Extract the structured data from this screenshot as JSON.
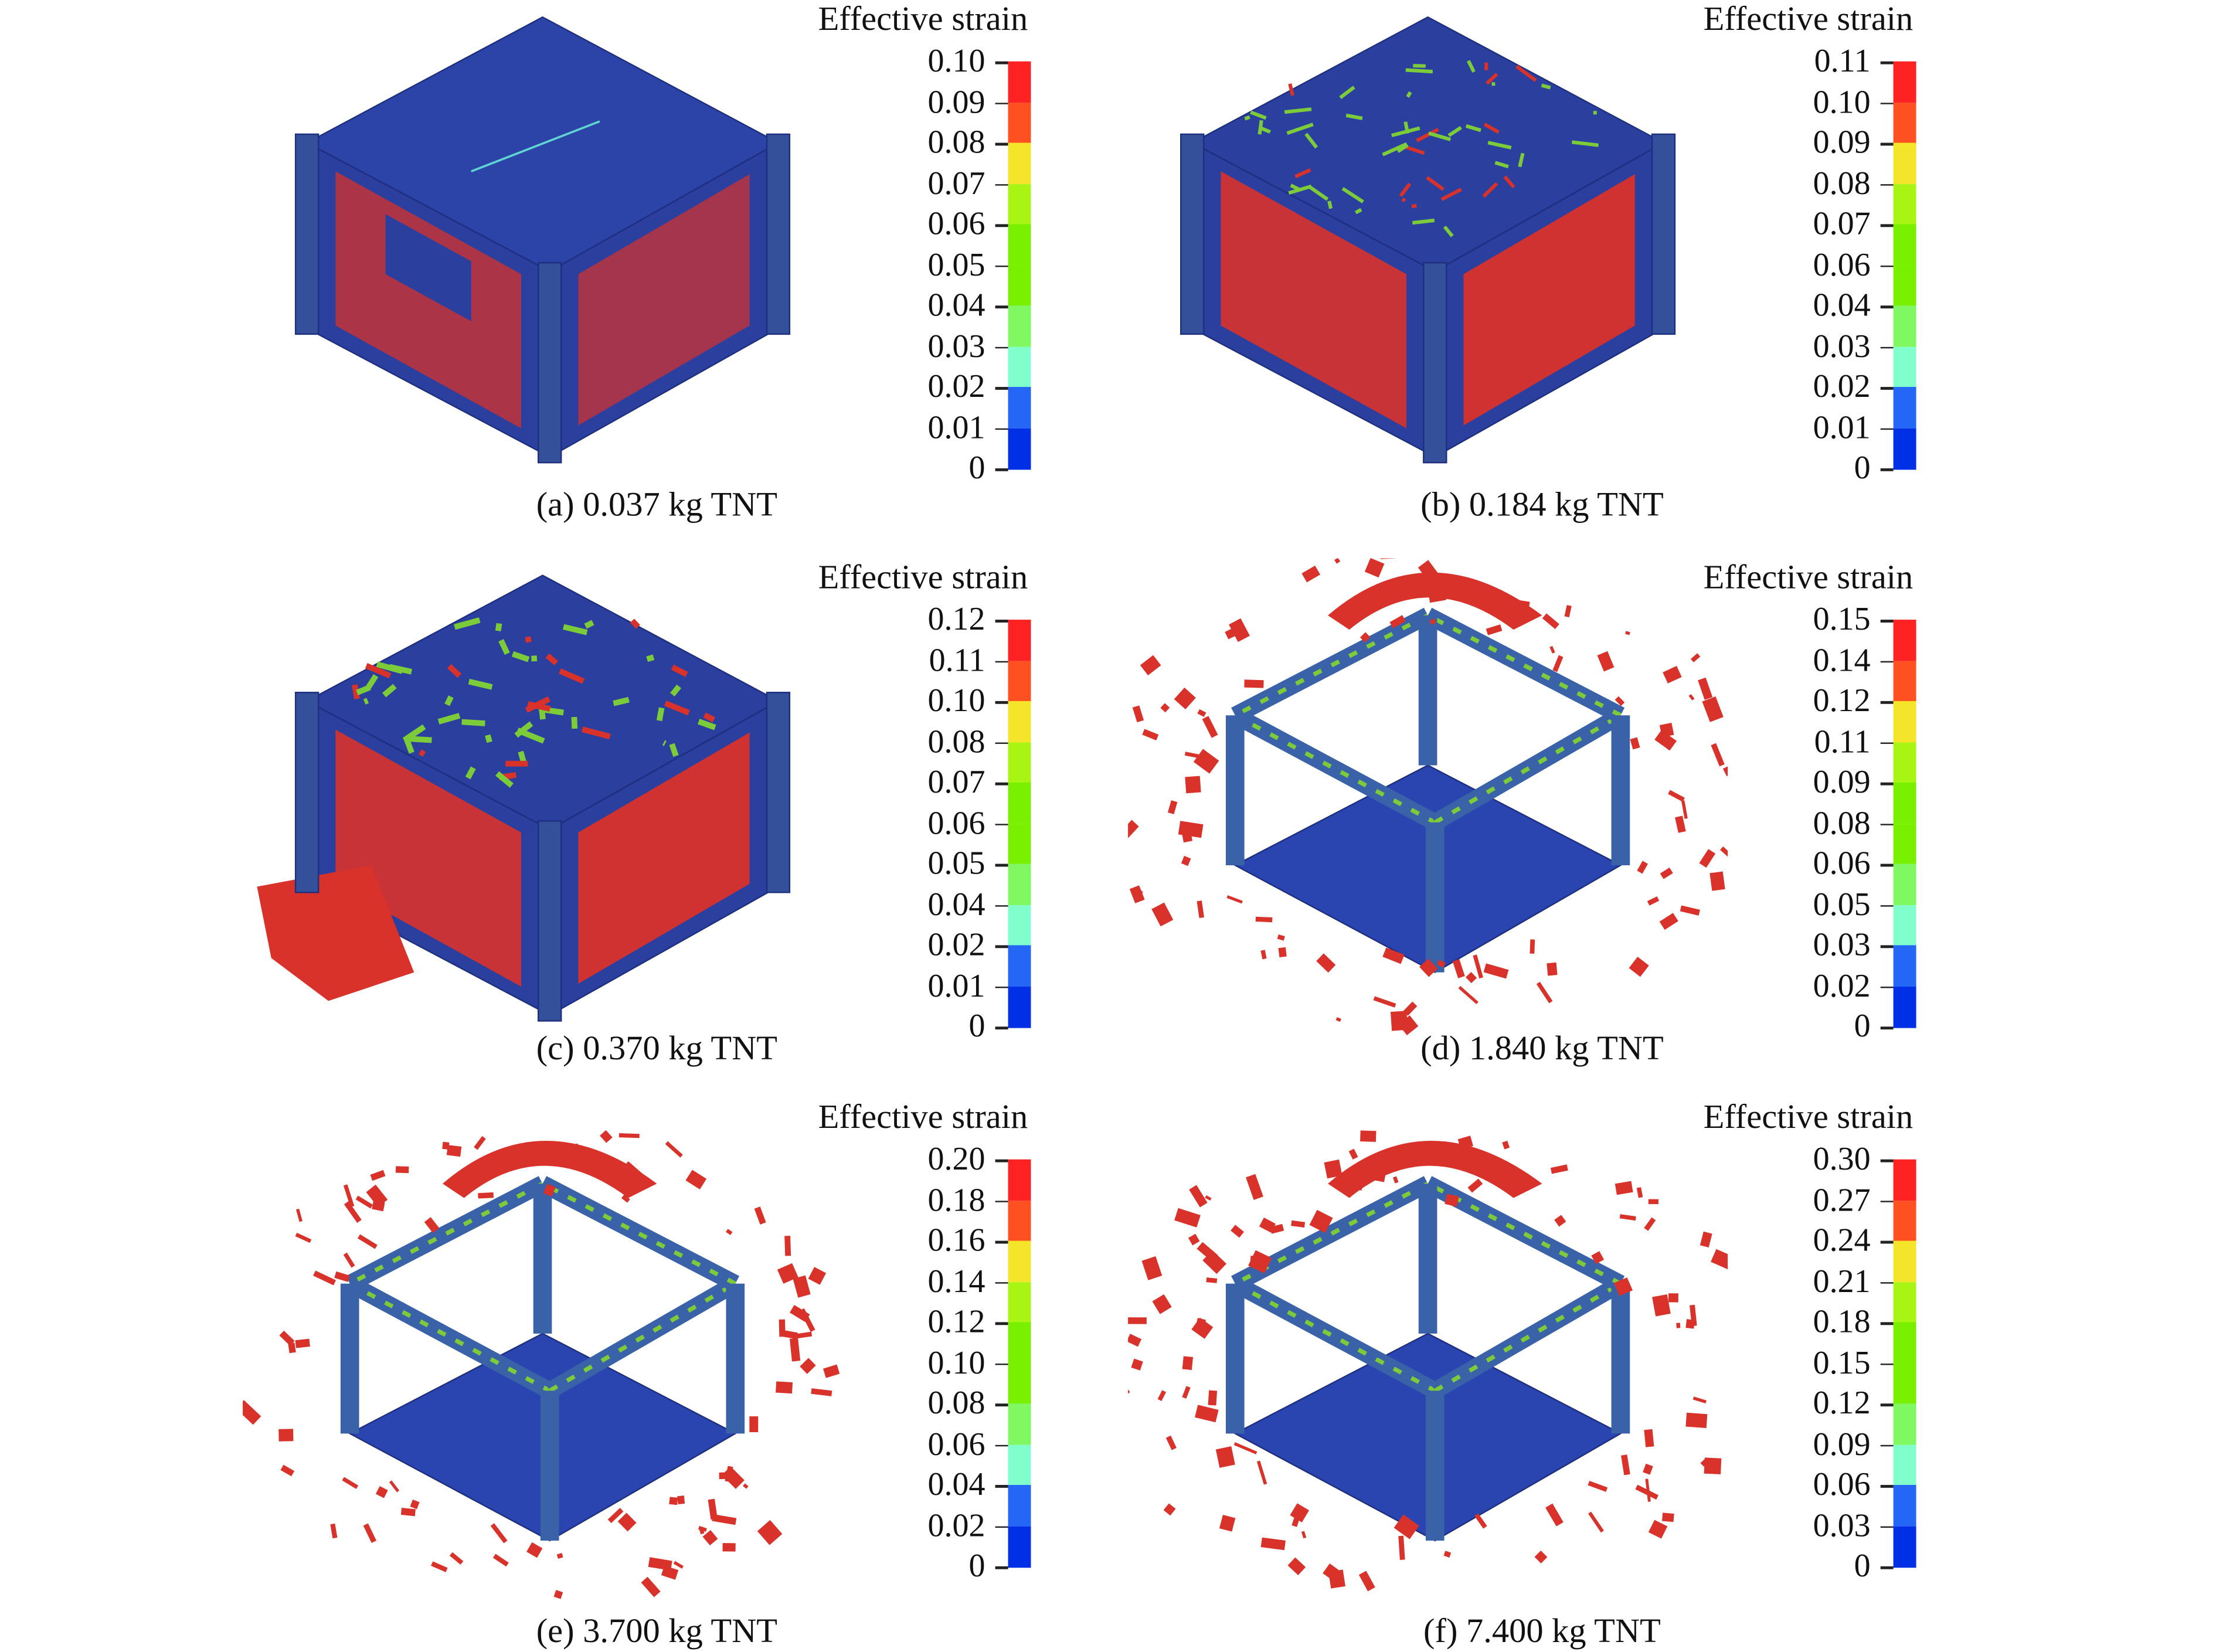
{
  "colorbar_colors": [
    "#ff2222",
    "#ff5022",
    "#f5e52a",
    "#a8f514",
    "#78f000",
    "#78f000",
    "#80f862",
    "#80ffcc",
    "#2466f5",
    "#0030e6"
  ],
  "model_colors": {
    "steel_blue": "#2a3f9e",
    "dark_blue": "#1e2f80",
    "damage_red": "#d8322a",
    "strain_green": "#7ccc3a",
    "cyan": "#5fd4d0"
  },
  "panels": [
    {
      "id": "a",
      "title": "Effective strain",
      "ticks": [
        "0.10",
        "0.09",
        "0.08",
        "0.07",
        "0.06",
        "0.05",
        "0.04",
        "0.03",
        "0.02",
        "0.01",
        "0"
      ],
      "caption": "(a) 0.037 kg TNT",
      "state": "intact"
    },
    {
      "id": "b",
      "title": "Effective strain",
      "ticks": [
        "0.11",
        "0.10",
        "0.09",
        "0.08",
        "0.07",
        "0.06",
        "0.04",
        "0.03",
        "0.02",
        "0.01",
        "0"
      ],
      "caption": "(b) 0.184 kg TNT",
      "state": "cracked"
    },
    {
      "id": "c",
      "title": "Effective strain",
      "ticks": [
        "0.12",
        "0.11",
        "0.10",
        "0.08",
        "0.07",
        "0.06",
        "0.05",
        "0.04",
        "0.02",
        "0.01",
        "0"
      ],
      "caption": "(c) 0.370 kg TNT",
      "state": "ruptured"
    },
    {
      "id": "d",
      "title": "Effective strain",
      "ticks": [
        "0.15",
        "0.14",
        "0.12",
        "0.11",
        "0.09",
        "0.08",
        "0.06",
        "0.05",
        "0.03",
        "0.02",
        "0"
      ],
      "caption": "(d) 1.840 kg TNT",
      "state": "frame"
    },
    {
      "id": "e",
      "title": "Effective strain",
      "ticks": [
        "0.20",
        "0.18",
        "0.16",
        "0.14",
        "0.12",
        "0.10",
        "0.08",
        "0.06",
        "0.04",
        "0.02",
        "0"
      ],
      "caption": "(e) 3.700 kg TNT",
      "state": "frame"
    },
    {
      "id": "f",
      "title": "Effective strain",
      "ticks": [
        "0.30",
        "0.27",
        "0.24",
        "0.21",
        "0.18",
        "0.15",
        "0.12",
        "0.09",
        "0.06",
        "0.03",
        "0"
      ],
      "caption": "(f) 7.400 kg TNT",
      "state": "frame"
    }
  ]
}
